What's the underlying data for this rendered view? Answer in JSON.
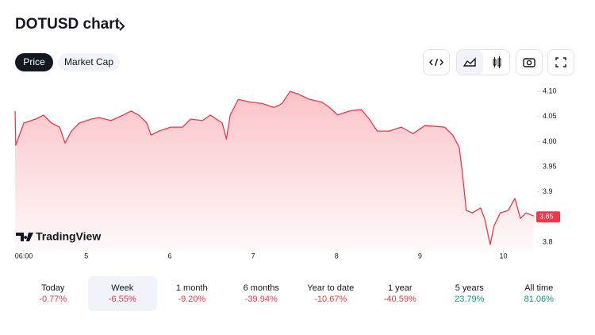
{
  "header": {
    "title": "DOTUSD chart"
  },
  "tabs": [
    "Price",
    "Market Cap"
  ],
  "chart_data": {
    "type": "line",
    "color": "#f23645",
    "brand": "TradingView",
    "x": [
      3.5,
      3.7,
      6,
      9.4,
      11.7,
      14,
      16.3,
      17.9,
      19.7,
      22,
      25.4,
      27.7,
      31.1,
      34.6,
      36.9,
      39.1,
      41.4,
      42.6,
      44.9,
      48.3,
      51.7,
      54,
      57.4,
      59.7,
      63.1,
      64.3,
      65.4,
      67.7,
      71.1,
      74.6,
      78,
      80.3,
      82.6,
      84.9,
      88.3,
      91.7,
      94,
      96.3,
      99.7,
      103.1,
      105.4,
      107.7,
      111.1,
      114.6,
      118,
      121.4,
      127.1,
      129.4,
      131.3,
      132.2,
      133.3,
      135.1,
      137.4,
      138.6,
      140.2,
      141.3,
      143.1,
      145.4,
      147.3,
      148.9,
      150.5,
      152.7
    ],
    "values": [
      4.061,
      3.993,
      4.037,
      4.045,
      4.053,
      4.037,
      4.029,
      3.997,
      4.021,
      4.037,
      4.045,
      4.048,
      4.042,
      4.053,
      4.061,
      4.053,
      4.037,
      4.013,
      4.021,
      4.029,
      4.029,
      4.045,
      4.042,
      4.053,
      4.037,
      4.005,
      4.053,
      4.084,
      4.079,
      4.076,
      4.068,
      4.076,
      4.1,
      4.095,
      4.084,
      4.079,
      4.068,
      4.053,
      4.061,
      4.064,
      4.045,
      4.021,
      4.021,
      4.029,
      4.016,
      4.032,
      4.029,
      4.013,
      3.989,
      3.937,
      3.863,
      3.858,
      3.868,
      3.847,
      3.795,
      3.832,
      3.858,
      3.863,
      3.887,
      3.847,
      3.858,
      3.852
    ],
    "last_value": 3.85,
    "xlim": [
      3.5,
      153
    ],
    "ylim": [
      3.784,
      4.124
    ],
    "yticks": [
      3.8,
      3.85,
      3.9,
      3.95,
      {
        "value": 4,
        "label": "4.00"
      },
      4.05,
      {
        "value": 4.1,
        "label": "4.10"
      }
    ],
    "xticks": [
      {
        "value": 6,
        "label": "06:00"
      },
      {
        "value": 24,
        "label": "5"
      },
      {
        "value": 48,
        "label": "6"
      },
      {
        "value": 72,
        "label": "7"
      },
      {
        "value": 96,
        "label": "8"
      },
      {
        "value": 120,
        "label": "9"
      },
      {
        "value": 144,
        "label": "10"
      }
    ]
  },
  "periods": [
    {
      "label": "Today",
      "change": "-0.77%",
      "color": "#f23645"
    },
    {
      "label": "Week",
      "change": "-6.55%",
      "color": "#f23645",
      "selected": true
    },
    {
      "label": "1 month",
      "change": "-9.20%",
      "color": "#f23645"
    },
    {
      "label": "6 months",
      "change": "-39.94%",
      "color": "#f23645"
    },
    {
      "label": "Year to date",
      "change": "-10.67%",
      "color": "#f23645"
    },
    {
      "label": "1 year",
      "change": "-40.59%",
      "color": "#f23645"
    },
    {
      "label": "5 years",
      "change": "23.79%",
      "color": "#089981"
    },
    {
      "label": "All time",
      "change": "81.06%",
      "color": "#089981"
    }
  ]
}
